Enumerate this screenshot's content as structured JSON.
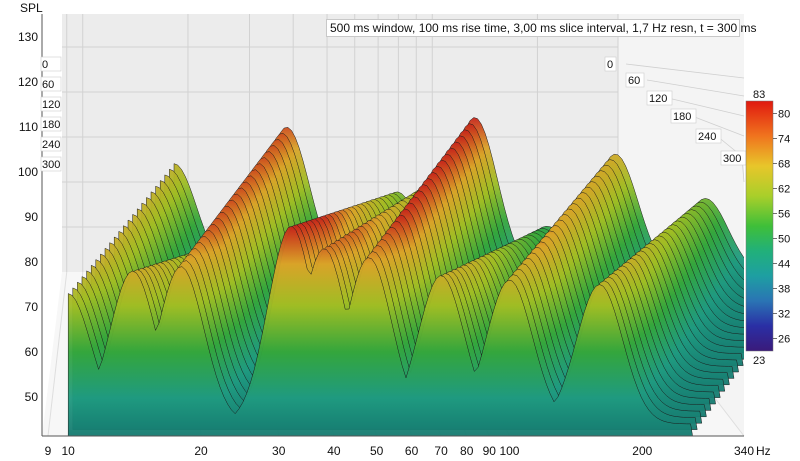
{
  "info_text": "500 ms window, 100 ms rise time, 3,00 ms slice interval, 1,7 Hz resn, t = 300 ms",
  "chart_data": {
    "type": "waterfall",
    "ylabel": "SPL",
    "xunit": "Hz",
    "x_scale": "log",
    "xlim": [
      9,
      340
    ],
    "ylim": [
      42,
      130
    ],
    "x_ticks": [
      9,
      10,
      20,
      30,
      40,
      50,
      60,
      70,
      80,
      90,
      100,
      200,
      340
    ],
    "x_tick_labels": [
      "9",
      "10",
      "20",
      "30",
      "40",
      "50",
      "60",
      "70",
      "80",
      "90",
      "100",
      "200",
      "340"
    ],
    "y_ticks": [
      50,
      60,
      70,
      80,
      90,
      100,
      110,
      120,
      130
    ],
    "y_tick_labels": [
      "50",
      "60",
      "70",
      "80",
      "90",
      "100",
      "110",
      "120",
      "130"
    ],
    "time_ticks_ms": [
      0,
      60,
      120,
      180,
      240,
      300
    ],
    "time_tick_labels": [
      "0",
      "60",
      "120",
      "180",
      "240",
      "300"
    ],
    "colorbar": {
      "min": 23,
      "max": 83,
      "ticks": [
        80,
        74,
        68,
        62,
        56,
        50,
        44,
        38,
        32,
        26
      ],
      "min_label": "23",
      "max_label": "83"
    },
    "peaks": [
      {
        "freq_hz": 10,
        "spl": 73
      },
      {
        "freq_hz": 14,
        "spl": 78
      },
      {
        "freq_hz": 18,
        "spl": 79
      },
      {
        "freq_hz": 32,
        "spl": 88
      },
      {
        "freq_hz": 38,
        "spl": 83
      },
      {
        "freq_hz": 48,
        "spl": 81
      },
      {
        "freq_hz": 70,
        "spl": 77
      },
      {
        "freq_hz": 100,
        "spl": 76
      },
      {
        "freq_hz": 160,
        "spl": 75
      }
    ]
  }
}
